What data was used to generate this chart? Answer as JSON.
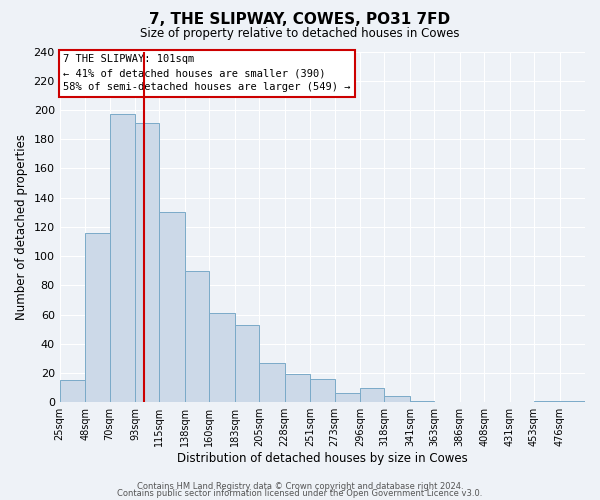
{
  "title": "7, THE SLIPWAY, COWES, PO31 7FD",
  "subtitle": "Size of property relative to detached houses in Cowes",
  "xlabel": "Distribution of detached houses by size in Cowes",
  "ylabel": "Number of detached properties",
  "bar_values": [
    15,
    116,
    197,
    191,
    130,
    90,
    61,
    53,
    27,
    19,
    16,
    6,
    10,
    4,
    1,
    0,
    0,
    0,
    0,
    1,
    1
  ],
  "bin_edges": [
    25,
    48,
    70,
    93,
    115,
    138,
    160,
    183,
    205,
    228,
    251,
    273,
    296,
    318,
    341,
    363,
    386,
    408,
    431,
    453,
    476,
    499
  ],
  "bin_labels": [
    "25sqm",
    "48sqm",
    "70sqm",
    "93sqm",
    "115sqm",
    "138sqm",
    "160sqm",
    "183sqm",
    "205sqm",
    "228sqm",
    "251sqm",
    "273sqm",
    "296sqm",
    "318sqm",
    "341sqm",
    "363sqm",
    "386sqm",
    "408sqm",
    "431sqm",
    "453sqm",
    "476sqm"
  ],
  "bar_color": "#ccd9e8",
  "bar_edge_color": "#7aaac8",
  "red_line_x": 101,
  "ylim": [
    0,
    240
  ],
  "yticks": [
    0,
    20,
    40,
    60,
    80,
    100,
    120,
    140,
    160,
    180,
    200,
    220,
    240
  ],
  "annotation_title": "7 THE SLIPWAY: 101sqm",
  "annotation_line1": "← 41% of detached houses are smaller (390)",
  "annotation_line2": "58% of semi-detached houses are larger (549) →",
  "footer1": "Contains HM Land Registry data © Crown copyright and database right 2024.",
  "footer2": "Contains public sector information licensed under the Open Government Licence v3.0.",
  "background_color": "#eef2f7",
  "grid_color": "#ffffff",
  "box_color": "#ffffff"
}
